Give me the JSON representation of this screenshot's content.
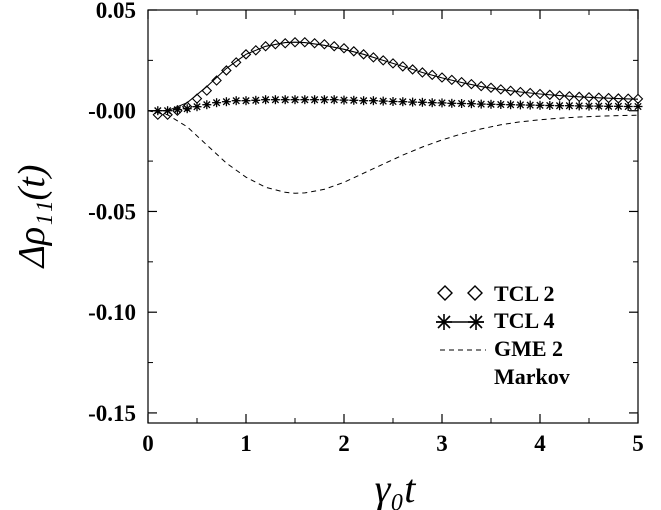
{
  "chart_data": {
    "type": "line",
    "title": "",
    "xlabel": "γ₀t",
    "ylabel": "Δρ₁₁(t)",
    "xlim": [
      0,
      5
    ],
    "ylim": [
      -0.155,
      0.05
    ],
    "xticks": [
      "0",
      "1",
      "2",
      "3",
      "4",
      "5"
    ],
    "xtick_values": [
      0,
      1,
      2,
      3,
      4,
      5
    ],
    "yticks": [
      "0.05",
      "-0.00",
      "-0.05",
      "-0.10",
      "-0.15"
    ],
    "ytick_values": [
      0.05,
      0.0,
      -0.05,
      -0.1,
      -0.15
    ],
    "grid": false,
    "legend_position": "bottom-right",
    "legend": [
      "TCL 2",
      "TCL 4",
      "GME 2",
      "Markov"
    ],
    "series": [
      {
        "name": "TCL 2",
        "style": "diamond-markers",
        "x": [
          0.1,
          0.2,
          0.3,
          0.4,
          0.5,
          0.6,
          0.7,
          0.8,
          0.9,
          1.0,
          1.1,
          1.2,
          1.3,
          1.4,
          1.5,
          1.6,
          1.7,
          1.8,
          1.9,
          2.0,
          2.1,
          2.2,
          2.3,
          2.4,
          2.5,
          2.6,
          2.7,
          2.8,
          2.9,
          3.0,
          3.1,
          3.2,
          3.3,
          3.4,
          3.5,
          3.6,
          3.7,
          3.8,
          3.9,
          4.0,
          4.1,
          4.2,
          4.3,
          4.4,
          4.5,
          4.6,
          4.7,
          4.8,
          4.9,
          5.0
        ],
        "values": [
          -0.002,
          -0.002,
          0.0,
          0.002,
          0.006,
          0.01,
          0.015,
          0.02,
          0.024,
          0.028,
          0.03,
          0.032,
          0.033,
          0.0335,
          0.034,
          0.034,
          0.0335,
          0.033,
          0.032,
          0.031,
          0.0295,
          0.028,
          0.0265,
          0.025,
          0.0235,
          0.022,
          0.0205,
          0.019,
          0.0178,
          0.0165,
          0.0153,
          0.0142,
          0.0132,
          0.0122,
          0.0114,
          0.0106,
          0.0099,
          0.0093,
          0.0088,
          0.0083,
          0.0079,
          0.0075,
          0.0072,
          0.0069,
          0.0067,
          0.0065,
          0.0063,
          0.0061,
          0.006,
          0.0059
        ]
      },
      {
        "name": "TCL 4",
        "style": "star-markers",
        "x": [
          0.1,
          0.2,
          0.3,
          0.4,
          0.5,
          0.6,
          0.7,
          0.8,
          0.9,
          1.0,
          1.1,
          1.2,
          1.3,
          1.4,
          1.5,
          1.6,
          1.7,
          1.8,
          1.9,
          2.0,
          2.1,
          2.2,
          2.3,
          2.4,
          2.5,
          2.6,
          2.7,
          2.8,
          2.9,
          3.0,
          3.1,
          3.2,
          3.3,
          3.4,
          3.5,
          3.6,
          3.7,
          3.8,
          3.9,
          4.0,
          4.1,
          4.2,
          4.3,
          4.4,
          4.5,
          4.6,
          4.7,
          4.8,
          4.9,
          5.0
        ],
        "values": [
          0.0,
          0.0,
          0.0005,
          0.001,
          0.002,
          0.003,
          0.004,
          0.0045,
          0.005,
          0.005,
          0.0052,
          0.0055,
          0.0055,
          0.0055,
          0.0055,
          0.0055,
          0.0055,
          0.0055,
          0.0055,
          0.0053,
          0.0052,
          0.005,
          0.005,
          0.0048,
          0.0046,
          0.0045,
          0.0043,
          0.0042,
          0.004,
          0.0039,
          0.0037,
          0.0036,
          0.0035,
          0.0033,
          0.0032,
          0.0031,
          0.003,
          0.0029,
          0.0028,
          0.0027,
          0.0026,
          0.0025,
          0.0025,
          0.0024,
          0.0023,
          0.0023,
          0.0022,
          0.0022,
          0.0021,
          0.0021
        ]
      },
      {
        "name": "GME 2",
        "style": "dashed",
        "x": [
          0.0,
          0.2,
          0.4,
          0.6,
          0.8,
          1.0,
          1.2,
          1.4,
          1.5,
          1.6,
          1.8,
          2.0,
          2.2,
          2.4,
          2.6,
          2.8,
          3.0,
          3.2,
          3.4,
          3.6,
          3.8,
          4.0,
          4.2,
          4.4,
          4.6,
          4.8,
          5.0
        ],
        "values": [
          0.0,
          -0.002,
          -0.008,
          -0.017,
          -0.026,
          -0.033,
          -0.038,
          -0.0405,
          -0.041,
          -0.0408,
          -0.039,
          -0.0355,
          -0.031,
          -0.0265,
          -0.022,
          -0.018,
          -0.0145,
          -0.0115,
          -0.009,
          -0.007,
          -0.0055,
          -0.0045,
          -0.0037,
          -0.0031,
          -0.0027,
          -0.0024,
          -0.0022
        ]
      },
      {
        "name": "Markov",
        "style": "solid",
        "x": [
          0.0,
          0.2,
          0.4,
          0.6,
          0.8,
          1.0,
          1.2,
          1.4,
          1.5,
          1.6,
          1.8,
          2.0,
          2.2,
          2.4,
          2.6,
          2.8,
          3.0,
          3.2,
          3.4,
          3.6,
          3.8,
          4.0,
          4.2,
          4.4,
          4.6,
          4.8,
          5.0
        ],
        "values": [
          0.0,
          0.0,
          0.004,
          0.012,
          0.021,
          0.028,
          0.032,
          0.0338,
          0.034,
          0.0338,
          0.0325,
          0.0305,
          0.028,
          0.025,
          0.022,
          0.019,
          0.0163,
          0.014,
          0.012,
          0.0105,
          0.0093,
          0.0083,
          0.0075,
          0.0069,
          0.0064,
          0.006,
          0.0057
        ]
      }
    ]
  }
}
